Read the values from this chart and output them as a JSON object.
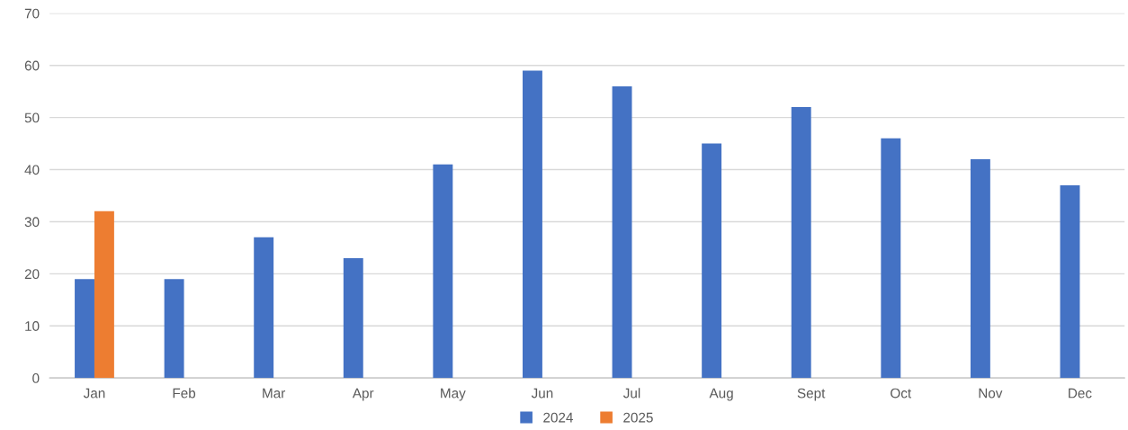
{
  "chart_data": {
    "type": "bar",
    "categories": [
      "Jan",
      "Feb",
      "Mar",
      "Apr",
      "May",
      "Jun",
      "Jul",
      "Aug",
      "Sept",
      "Oct",
      "Nov",
      "Dec"
    ],
    "series": [
      {
        "name": "2024",
        "color": "#4472c4",
        "values": [
          19,
          19,
          27,
          23,
          41,
          59,
          56,
          45,
          52,
          46,
          42,
          37
        ]
      },
      {
        "name": "2025",
        "color": "#ed7d31",
        "values": [
          32,
          null,
          null,
          null,
          null,
          null,
          null,
          null,
          null,
          null,
          null,
          null
        ]
      }
    ],
    "ylim": [
      0,
      70
    ],
    "yticks": [
      0,
      10,
      20,
      30,
      40,
      50,
      60,
      70
    ],
    "grid": "y",
    "legend": "bottom"
  }
}
